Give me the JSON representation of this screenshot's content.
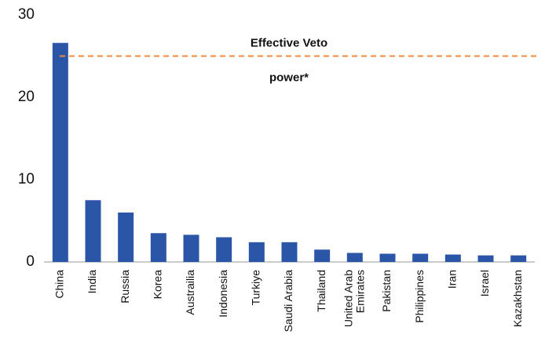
{
  "chart_data": {
    "type": "bar",
    "categories": [
      "China",
      "India",
      "Russia",
      "Korea",
      "Austrailia",
      "Indonesia",
      "Turkiye",
      "Saudi Arabia",
      "Thailand",
      "United Arab Emirates",
      "Pakistan",
      "Philippines",
      "Iran",
      "Israel",
      "Kazakhstan"
    ],
    "values": [
      26.6,
      7.5,
      6.0,
      3.5,
      3.3,
      3.0,
      2.4,
      2.4,
      1.5,
      1.1,
      1.0,
      1.0,
      0.9,
      0.8,
      0.8
    ],
    "color": "#2b56a8",
    "ylim": [
      0,
      30
    ],
    "yticks": [
      0,
      10,
      20,
      30
    ],
    "grid": false,
    "annotation": {
      "lines": [
        "Effective Veto",
        "power*"
      ],
      "value": 25,
      "color": "#f08a3c"
    }
  }
}
